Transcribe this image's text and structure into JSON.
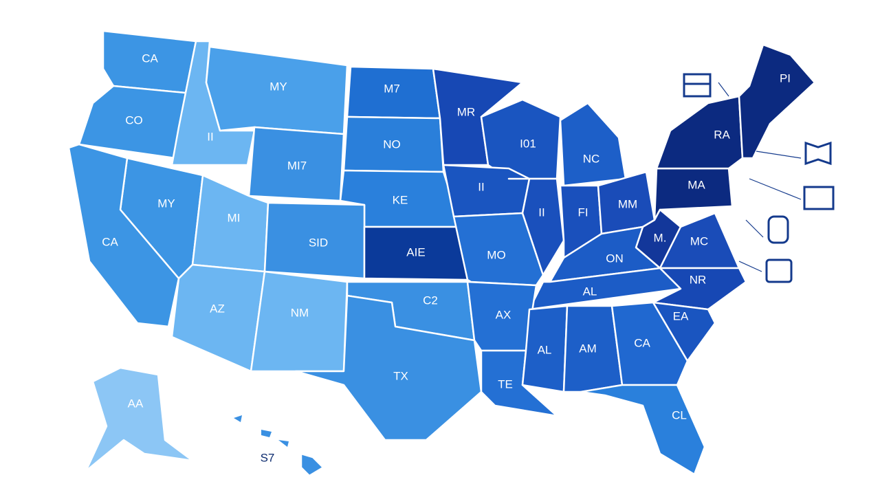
{
  "states": [
    {
      "label": "CA",
      "color": "#3c95e4"
    },
    {
      "label": "CO",
      "color": "#3c95e4"
    },
    {
      "label": "II",
      "color": "#6cb6f2"
    },
    {
      "label": "MY",
      "color": "#4aa0ea"
    },
    {
      "label": "M7",
      "color": "#1f6fd2"
    },
    {
      "label": "NO",
      "color": "#2a7fda"
    },
    {
      "label": "MR",
      "color": "#1748b4"
    },
    {
      "label": "I01",
      "color": "#1a55c0"
    },
    {
      "label": "NC",
      "color": "#1d5fc8"
    },
    {
      "label": "MI7",
      "color": "#3a90e2"
    },
    {
      "label": "KE",
      "color": "#2a80dc"
    },
    {
      "label": "MY",
      "color": "#3c95e4"
    },
    {
      "label": "CA",
      "color": "#3c95e4"
    },
    {
      "label": "MI",
      "color": "#6cb6f2"
    },
    {
      "label": "SID",
      "color": "#3a90e2"
    },
    {
      "label": "AIE",
      "color": "#0b3a9a"
    },
    {
      "label": "II",
      "color": "#1a55c0"
    },
    {
      "label": "MO",
      "color": "#2470d4"
    },
    {
      "label": "II",
      "color": "#1a50bc"
    },
    {
      "label": "FI",
      "color": "#1a50bc"
    },
    {
      "label": "MM",
      "color": "#1a4cb8"
    },
    {
      "label": "MA",
      "color": "#0c2a80"
    },
    {
      "label": "RA",
      "color": "#0c2a80"
    },
    {
      "label": "PI",
      "color": "#0c2a80"
    },
    {
      "label": "M.",
      "color": "#13379a"
    },
    {
      "label": "MC",
      "color": "#1a4cb8"
    },
    {
      "label": "ON",
      "color": "#1c5cc6"
    },
    {
      "label": "AL",
      "color": "#1c5cc6"
    },
    {
      "label": "NR",
      "color": "#1748b4"
    },
    {
      "label": "AZ",
      "color": "#6cb6f2"
    },
    {
      "label": "NM",
      "color": "#6cb6f2"
    },
    {
      "label": "C2",
      "color": "#3a90e2"
    },
    {
      "label": "TX",
      "color": "#3a90e2"
    },
    {
      "label": "AX",
      "color": "#2470d4"
    },
    {
      "label": "TE",
      "color": "#2470d4"
    },
    {
      "label": "AL",
      "color": "#1d5fc8"
    },
    {
      "label": "AM",
      "color": "#1d5fc8"
    },
    {
      "label": "CA",
      "color": "#2068d0"
    },
    {
      "label": "EA",
      "color": "#1a55c0"
    },
    {
      "label": "CL",
      "color": "#2a80dc"
    },
    {
      "label": "AA",
      "color": "#8cc6f5"
    },
    {
      "label": "S7",
      "color": "#3a90e2"
    }
  ]
}
